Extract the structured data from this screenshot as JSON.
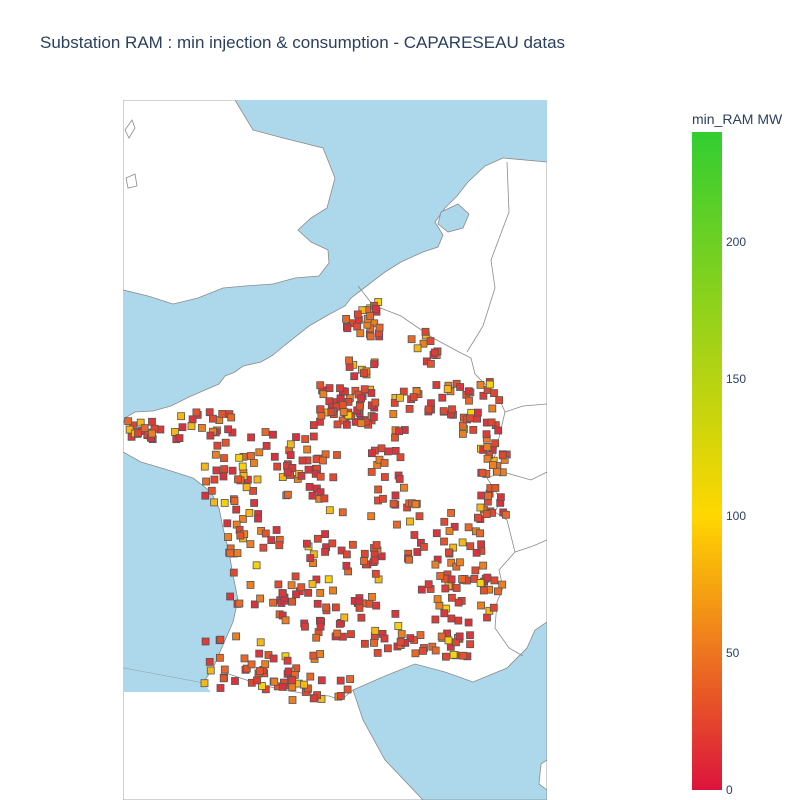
{
  "title": "Substation RAM : min injection & consumption - CAPARESEAU datas",
  "colorbar": {
    "title": "min_RAM MW",
    "min": 0,
    "max": 240,
    "colors": [
      "#dc143c",
      "#ffd700",
      "#32cd32"
    ],
    "ticks": [
      "0",
      "50",
      "100",
      "150",
      "200"
    ]
  },
  "map": {
    "ocean_color": "#add8ec",
    "land_color": "#ffffff",
    "border_color": "#888888",
    "marker_symbol": "square",
    "marker_outline": "#555555"
  }
}
